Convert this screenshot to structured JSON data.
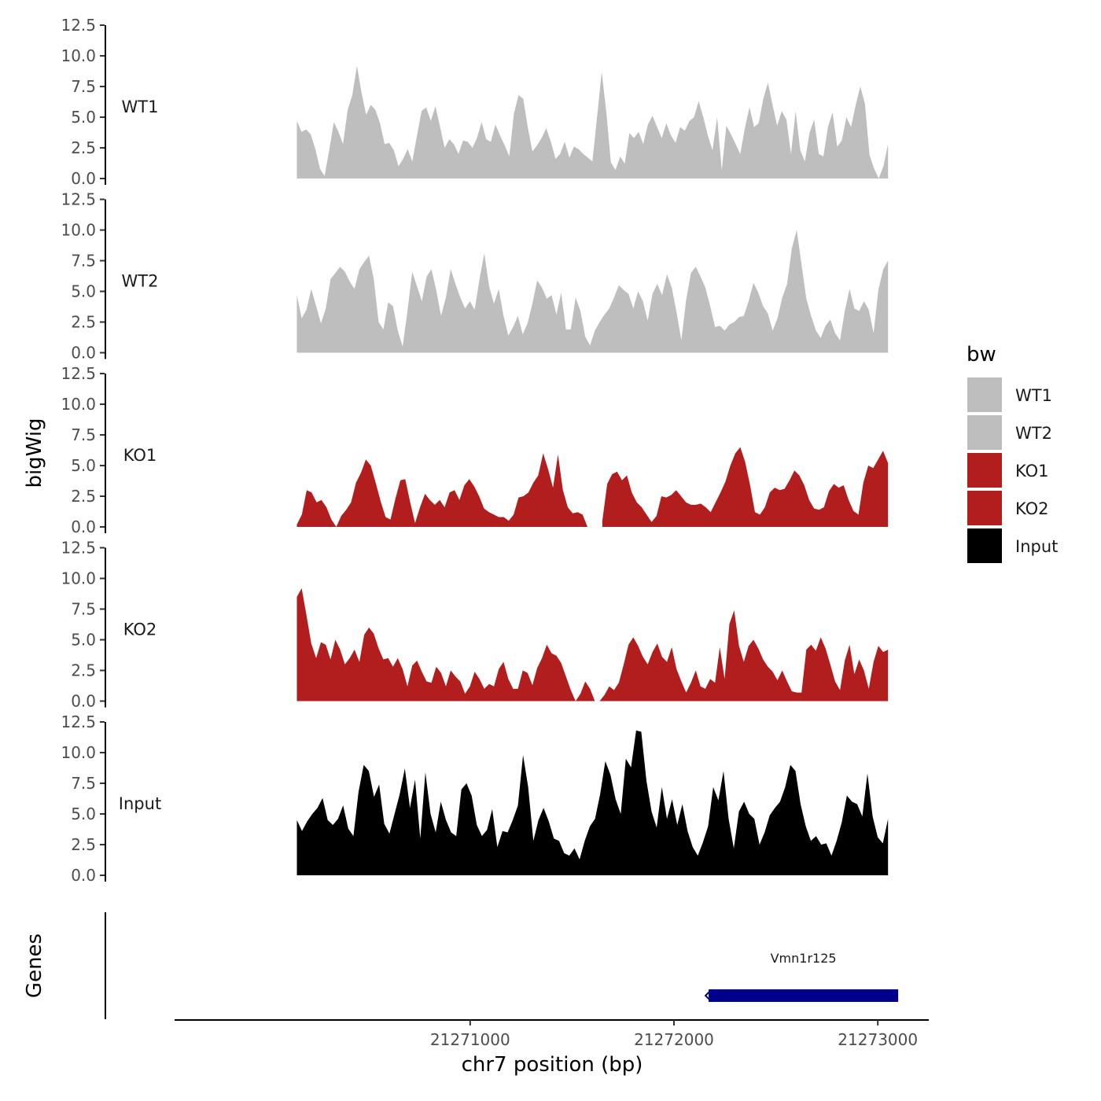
{
  "chart_data": {
    "type": "area",
    "xlabel": "chr7 position (bp)",
    "ylabel": "bigWig",
    "genes_ylabel": "Genes",
    "xlim": [
      21269550,
      21273250
    ],
    "data_xrange": [
      21270150,
      21273050
    ],
    "ylim": [
      0,
      12.5
    ],
    "y_ticks": [
      0.0,
      2.5,
      5.0,
      7.5,
      10.0,
      12.5
    ],
    "y_tick_labels": [
      "0.0",
      "2.5",
      "5.0",
      "7.5",
      "10.0",
      "12.5"
    ],
    "x_ticks": [
      21271000,
      21272000,
      21273000
    ],
    "x_tick_labels": [
      "21271000",
      "21272000",
      "21273000"
    ],
    "legend": {
      "title": "bw",
      "items": [
        {
          "label": "WT1",
          "color": "#bebebe"
        },
        {
          "label": "WT2",
          "color": "#bebebe"
        },
        {
          "label": "KO1",
          "color": "#b21e1e"
        },
        {
          "label": "KO2",
          "color": "#b21e1e"
        },
        {
          "label": "Input",
          "color": "#000000"
        }
      ]
    },
    "series": [
      {
        "name": "WT1",
        "color": "#bebebe",
        "values": [
          4.7,
          3.8,
          4.0,
          3.6,
          2.4,
          0.8,
          0.2,
          2.3,
          4.6,
          3.8,
          2.8,
          5.6,
          6.8,
          9.2,
          7.0,
          5.2,
          6.0,
          5.6,
          4.5,
          2.8,
          2.9,
          2.3,
          1.0,
          1.6,
          2.4,
          1.4,
          3.5,
          5.5,
          5.8,
          4.7,
          5.9,
          4.2,
          2.5,
          3.2,
          2.8,
          2.0,
          3.1,
          3.0,
          2.5,
          3.3,
          4.6,
          3.2,
          3.0,
          4.4,
          3.5,
          2.7,
          1.8,
          5.3,
          6.8,
          6.5,
          4.2,
          2.2,
          2.7,
          3.3,
          4.1,
          3.0,
          1.6,
          2.0,
          3.0,
          1.7,
          2.6,
          2.4,
          2.0,
          1.7,
          1.4,
          5.0,
          8.7,
          5.4,
          1.3,
          0.7,
          1.8,
          1.2,
          3.7,
          3.3,
          3.8,
          2.8,
          4.4,
          5.1,
          4.2,
          3.3,
          4.5,
          3.5,
          2.9,
          4.2,
          3.9,
          4.7,
          5.0,
          6.3,
          5.0,
          3.5,
          2.3,
          5.0,
          0.7,
          4.3,
          3.6,
          2.8,
          2.0,
          4.1,
          5.8,
          4.2,
          4.5,
          6.5,
          7.8,
          6.0,
          4.3,
          5.5,
          4.8,
          2.0,
          5.5,
          2.3,
          1.4,
          3.7,
          4.8,
          2.0,
          1.8,
          4.2,
          5.4,
          2.6,
          3.1,
          5.0,
          4.2,
          6.0,
          7.5,
          6.1,
          1.9,
          0.8,
          0.0,
          1.0,
          2.8
        ]
      },
      {
        "name": "WT2",
        "color": "#bebebe",
        "values": [
          4.7,
          2.8,
          3.5,
          5.2,
          3.8,
          2.4,
          3.6,
          6.0,
          6.5,
          7.0,
          6.6,
          5.8,
          5.2,
          6.8,
          7.4,
          7.9,
          6.0,
          2.5,
          1.9,
          4.1,
          3.8,
          1.8,
          0.5,
          3.4,
          6.6,
          5.4,
          4.2,
          6.2,
          6.8,
          5.1,
          3.0,
          4.5,
          6.8,
          5.6,
          4.5,
          3.6,
          4.2,
          3.5,
          6.0,
          8.1,
          5.4,
          4.0,
          5.2,
          3.0,
          1.4,
          2.1,
          3.0,
          1.5,
          2.4,
          4.0,
          5.9,
          5.3,
          4.4,
          4.7,
          3.1,
          4.9,
          1.9,
          1.9,
          4.5,
          3.4,
          1.3,
          0.6,
          1.8,
          2.5,
          3.1,
          3.6,
          4.5,
          5.5,
          5.1,
          4.8,
          3.6,
          5.0,
          4.2,
          2.6,
          4.8,
          5.6,
          4.7,
          6.4,
          5.3,
          3.3,
          1.0,
          4.3,
          6.5,
          7.0,
          6.2,
          5.3,
          3.8,
          2.1,
          2.2,
          1.8,
          2.3,
          2.5,
          2.9,
          3.0,
          4.2,
          5.7,
          4.9,
          3.8,
          3.2,
          1.8,
          2.8,
          4.5,
          5.6,
          8.5,
          10.0,
          7.2,
          4.4,
          3.0,
          1.8,
          1.2,
          2.2,
          2.7,
          1.6,
          1.0,
          3.4,
          5.2,
          3.6,
          3.4,
          4.2,
          3.5,
          1.6,
          5.1,
          6.8,
          7.5
        ]
      },
      {
        "name": "KO1",
        "color": "#b21e1e",
        "values": [
          0.2,
          1.0,
          3.0,
          2.8,
          2.0,
          2.2,
          1.6,
          0.6,
          0.0,
          0.9,
          1.4,
          2.0,
          3.6,
          4.4,
          5.5,
          5.0,
          3.6,
          2.1,
          0.8,
          0.6,
          2.3,
          3.8,
          3.9,
          2.0,
          0.3,
          1.6,
          2.7,
          2.2,
          1.8,
          2.2,
          1.6,
          2.8,
          3.0,
          2.2,
          3.4,
          3.9,
          3.3,
          2.5,
          1.5,
          1.2,
          1.0,
          0.8,
          0.8,
          0.5,
          1.0,
          2.4,
          2.5,
          2.8,
          3.6,
          4.2,
          6.0,
          4.7,
          3.2,
          5.9,
          3.0,
          1.6,
          1.1,
          1.2,
          1.0,
          0.0,
          null,
          null,
          0.5,
          3.5,
          4.3,
          4.5,
          3.8,
          4.2,
          2.8,
          2.0,
          1.6,
          1.0,
          0.4,
          0.9,
          2.5,
          2.4,
          2.6,
          3.0,
          2.5,
          2.0,
          1.8,
          1.8,
          1.9,
          1.6,
          1.2,
          2.0,
          2.8,
          3.7,
          5.0,
          6.0,
          6.5,
          5.3,
          3.4,
          1.2,
          1.0,
          1.6,
          2.8,
          3.2,
          3.0,
          3.1,
          3.8,
          4.6,
          4.2,
          3.4,
          2.2,
          1.5,
          1.4,
          1.6,
          2.9,
          3.5,
          3.2,
          3.4,
          2.2,
          1.3,
          1.0,
          3.6,
          5.0,
          4.8,
          5.5,
          6.2,
          5.2
        ]
      },
      {
        "name": "KO2",
        "color": "#b21e1e",
        "values": [
          8.5,
          9.2,
          7.0,
          4.7,
          3.5,
          4.8,
          4.6,
          3.4,
          5.0,
          4.2,
          3.0,
          3.5,
          4.2,
          3.2,
          5.4,
          6.0,
          5.5,
          4.3,
          3.4,
          3.5,
          2.8,
          3.5,
          2.6,
          1.2,
          2.9,
          3.3,
          2.4,
          1.6,
          1.5,
          2.8,
          2.3,
          1.2,
          2.5,
          2.0,
          1.6,
          0.6,
          1.2,
          2.4,
          1.8,
          1.0,
          1.4,
          1.2,
          2.6,
          3.2,
          1.8,
          1.0,
          1.0,
          2.5,
          2.3,
          1.3,
          2.7,
          3.5,
          4.6,
          3.9,
          3.7,
          3.1,
          2.0,
          0.9,
          0.0,
          0.6,
          1.6,
          1.0,
          0.0,
          0.0,
          0.5,
          1.2,
          0.9,
          1.5,
          3.0,
          4.6,
          5.2,
          4.5,
          3.6,
          3.0,
          4.0,
          4.7,
          3.6,
          3.2,
          4.4,
          2.6,
          1.6,
          0.7,
          1.5,
          2.5,
          1.2,
          1.0,
          1.8,
          1.5,
          4.4,
          1.8,
          6.3,
          7.4,
          4.5,
          3.2,
          4.5,
          5.0,
          4.3,
          3.4,
          2.8,
          2.4,
          1.7,
          2.5,
          1.6,
          0.8,
          0.7,
          0.7,
          4.2,
          4.6,
          4.1,
          5.2,
          4.3,
          3.0,
          1.6,
          0.9,
          3.3,
          4.6,
          2.2,
          3.4,
          2.5,
          1.0,
          3.2,
          4.5,
          4.0,
          4.2
        ]
      },
      {
        "name": "Input",
        "color": "#000000",
        "values": [
          4.5,
          3.6,
          4.4,
          5.0,
          5.5,
          6.3,
          4.5,
          4.1,
          4.6,
          5.7,
          3.8,
          3.2,
          6.8,
          9.0,
          8.5,
          6.4,
          7.4,
          4.2,
          3.4,
          5.0,
          6.6,
          8.7,
          5.5,
          7.8,
          3.0,
          8.4,
          5.0,
          3.5,
          6.0,
          4.5,
          3.5,
          3.2,
          7.0,
          7.5,
          6.5,
          4.1,
          3.2,
          3.7,
          5.4,
          2.3,
          3.6,
          3.5,
          4.5,
          5.7,
          9.8,
          7.2,
          2.8,
          4.5,
          5.5,
          4.4,
          3.0,
          2.8,
          1.8,
          1.6,
          2.2,
          1.3,
          2.8,
          4.0,
          4.6,
          6.6,
          9.3,
          8.2,
          6.2,
          5.0,
          9.5,
          8.8,
          11.8,
          11.7,
          7.7,
          5.2,
          3.9,
          7.2,
          4.6,
          6.2,
          4.1,
          5.8,
          3.6,
          2.3,
          1.6,
          2.7,
          4.0,
          7.2,
          6.1,
          8.5,
          4.6,
          2.2,
          5.2,
          6.0,
          5.0,
          4.6,
          2.5,
          3.5,
          4.9,
          5.5,
          6.0,
          7.2,
          9.0,
          8.5,
          5.8,
          4.0,
          2.8,
          3.2,
          2.5,
          2.6,
          1.6,
          2.8,
          4.3,
          6.5,
          6.0,
          5.8,
          4.8,
          8.3,
          4.8,
          3.1,
          2.6,
          4.6
        ]
      }
    ],
    "genes": [
      {
        "name": "Vmn1r125",
        "start": 21272170,
        "end": 21273100,
        "strand": "-",
        "color": "#00008b"
      }
    ]
  }
}
